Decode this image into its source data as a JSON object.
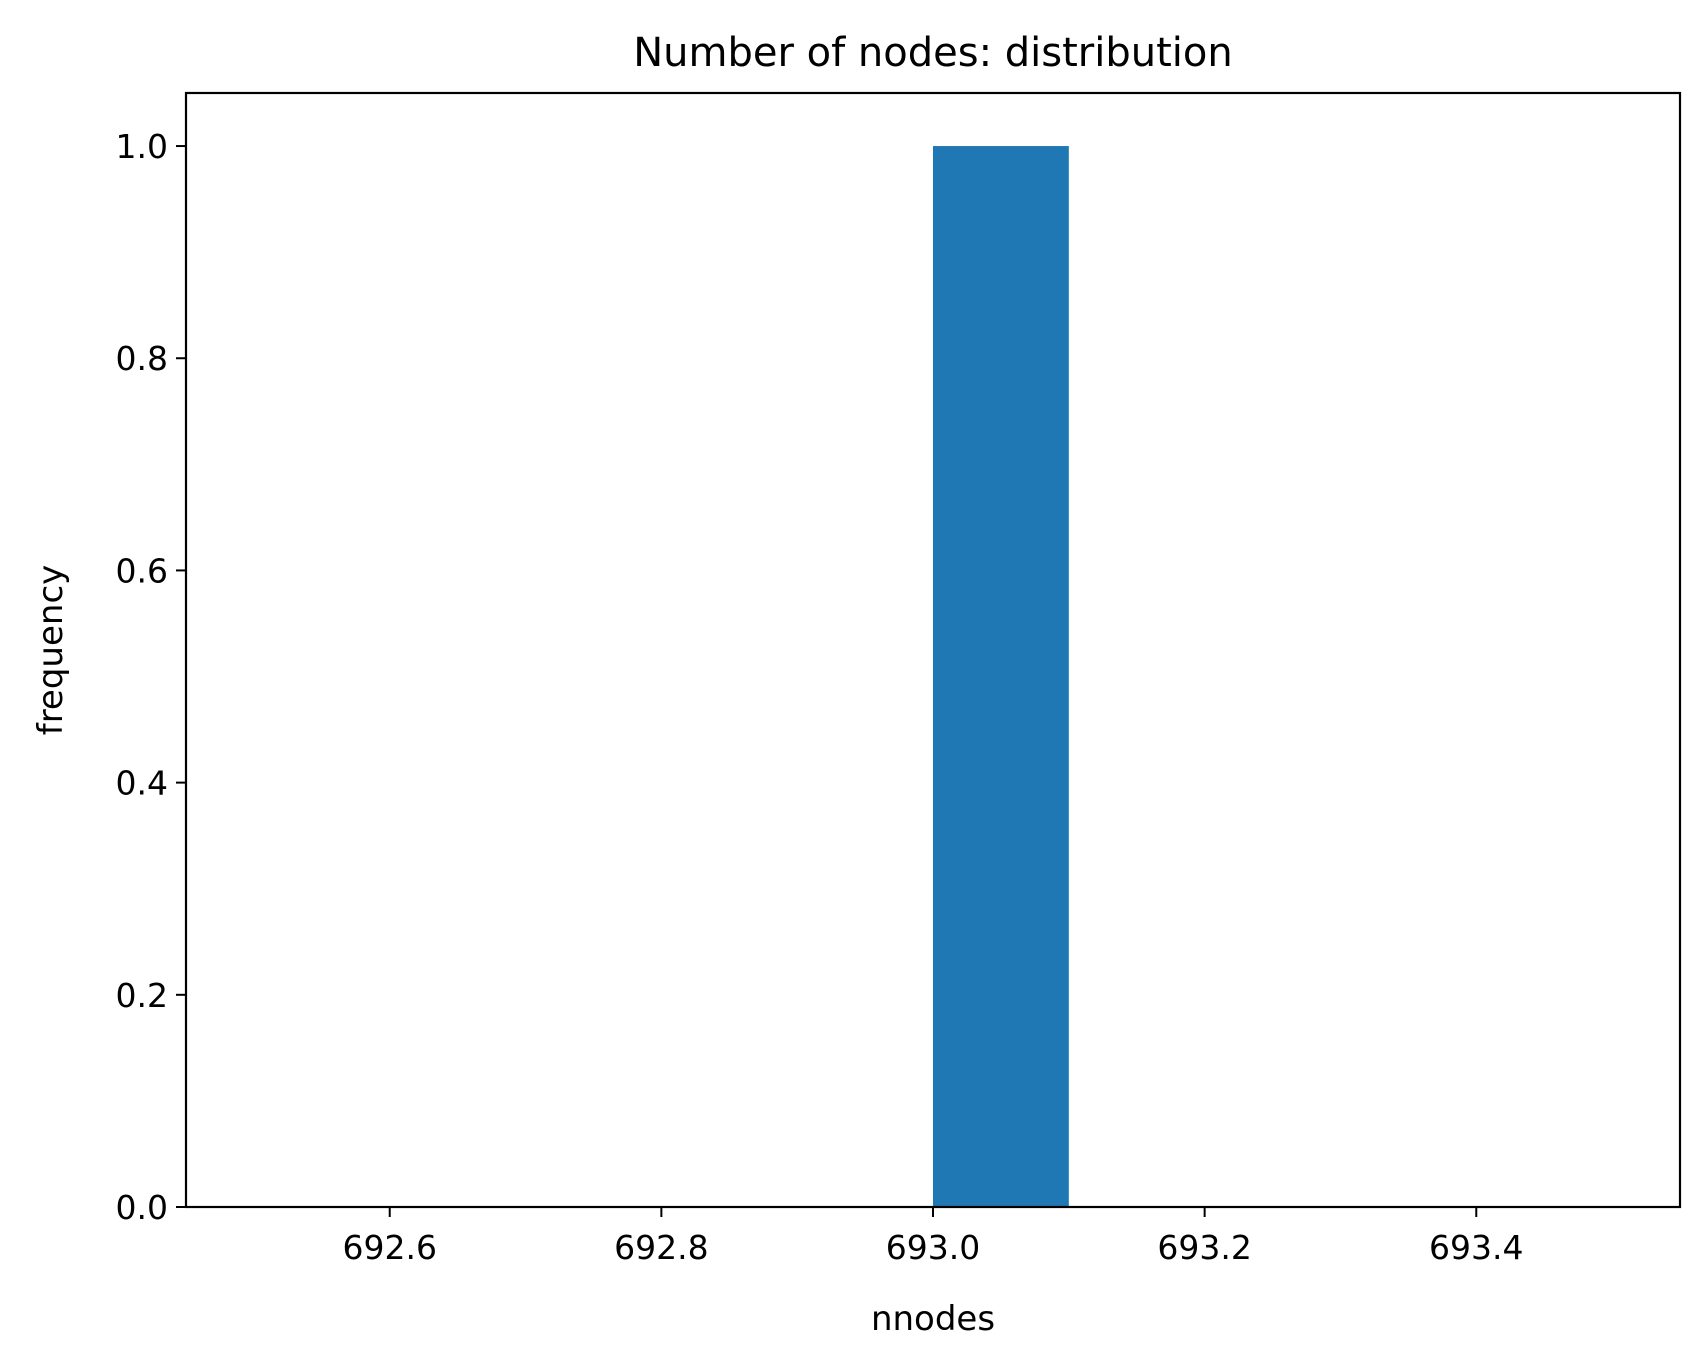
{
  "chart_data": {
    "type": "bar",
    "title": "Number of nodes: distribution",
    "xlabel": "nnodes",
    "ylabel": "frequency",
    "xlim": [
      692.45,
      693.55
    ],
    "ylim": [
      0,
      1.05
    ],
    "grid": false,
    "bars": [
      {
        "x0": 693.0,
        "x1": 693.1,
        "value": 1.0
      }
    ],
    "x_ticks": [
      {
        "value": 692.6,
        "label": "692.6"
      },
      {
        "value": 692.8,
        "label": "692.8"
      },
      {
        "value": 693.0,
        "label": "693.0"
      },
      {
        "value": 693.2,
        "label": "693.2"
      },
      {
        "value": 693.4,
        "label": "693.4"
      }
    ],
    "y_ticks": [
      {
        "value": 0.0,
        "label": "0.0"
      },
      {
        "value": 0.2,
        "label": "0.2"
      },
      {
        "value": 0.4,
        "label": "0.4"
      },
      {
        "value": 0.6,
        "label": "0.6"
      },
      {
        "value": 0.8,
        "label": "0.8"
      },
      {
        "value": 1.0,
        "label": "1.0"
      }
    ],
    "colors": {
      "bar": "#1f77b4",
      "axes": "#000000"
    }
  }
}
